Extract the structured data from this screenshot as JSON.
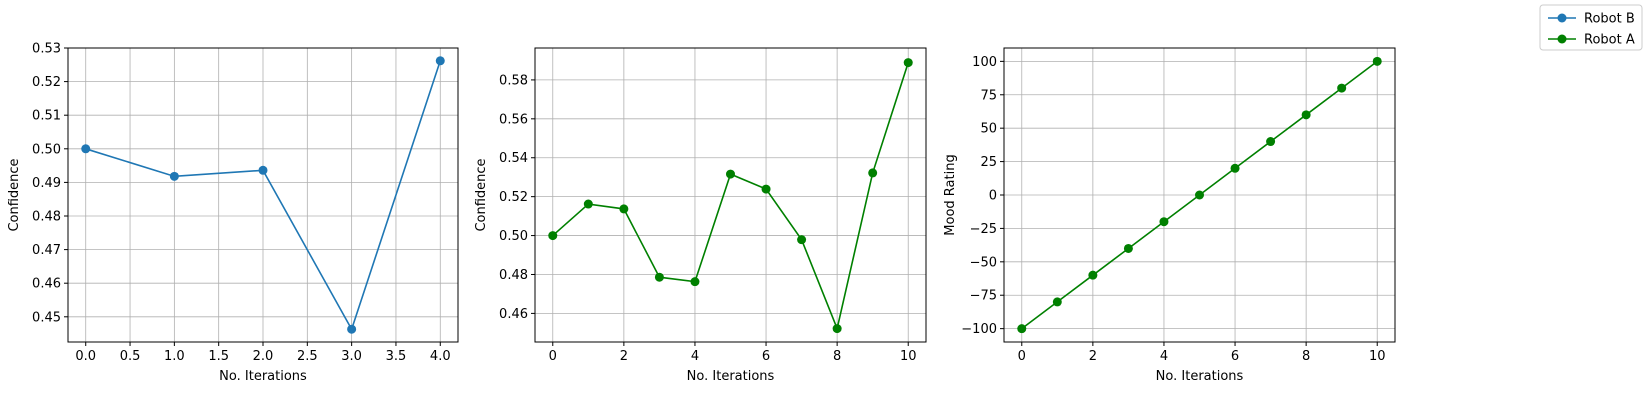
{
  "legend": {
    "placement": "top-right",
    "entries": [
      {
        "label": "Robot B",
        "color": "#1f77b4"
      },
      {
        "label": "Robot A",
        "color": "#008000"
      }
    ]
  },
  "chart_data": [
    {
      "type": "line",
      "xlabel": "No. Iterations",
      "ylabel": "Confidence",
      "color": "#1f77b4",
      "grid": true,
      "xlim": [
        -0.2,
        4.2
      ],
      "ylim": [
        0.4425,
        0.53
      ],
      "xticks": [
        0,
        0.5,
        1.0,
        1.5,
        2.0,
        2.5,
        3.0,
        3.5,
        4.0
      ],
      "xtick_labels": [
        "0.0",
        "0.5",
        "1.0",
        "1.5",
        "2.0",
        "2.5",
        "3.0",
        "3.5",
        "4.0"
      ],
      "yticks": [
        0.45,
        0.46,
        0.47,
        0.48,
        0.49,
        0.5,
        0.51,
        0.52,
        0.53
      ],
      "ytick_labels": [
        "0.45",
        "0.46",
        "0.47",
        "0.48",
        "0.49",
        "0.50",
        "0.51",
        "0.52",
        "0.53"
      ],
      "series": [
        {
          "x": [
            0,
            1,
            2,
            3,
            4
          ],
          "values": [
            0.5,
            0.4918,
            0.4936,
            0.4463,
            0.5262
          ]
        }
      ]
    },
    {
      "type": "line",
      "xlabel": "No. Iterations",
      "ylabel": "Confidence",
      "color": "#008000",
      "grid": true,
      "xlim": [
        -0.5,
        10.5
      ],
      "ylim": [
        0.4453,
        0.5964
      ],
      "xticks": [
        0,
        2,
        4,
        6,
        8,
        10
      ],
      "xtick_labels": [
        "0",
        "2",
        "4",
        "6",
        "8",
        "10"
      ],
      "yticks": [
        0.46,
        0.48,
        0.5,
        0.52,
        0.54,
        0.56,
        0.58
      ],
      "ytick_labels": [
        "0.46",
        "0.48",
        "0.50",
        "0.52",
        "0.54",
        "0.56",
        "0.58"
      ],
      "series": [
        {
          "x": [
            0,
            1,
            2,
            3,
            4,
            5,
            6,
            7,
            8,
            9,
            10
          ],
          "values": [
            0.5,
            0.5162,
            0.5137,
            0.4786,
            0.4763,
            0.5316,
            0.5239,
            0.4979,
            0.4522,
            0.5322,
            0.5889
          ]
        }
      ]
    },
    {
      "type": "line",
      "xlabel": "No. Iterations",
      "ylabel": "Mood Rating",
      "color": "#008000",
      "grid": true,
      "xlim": [
        -0.5,
        10.5
      ],
      "ylim": [
        -110,
        110
      ],
      "xticks": [
        0,
        2,
        4,
        6,
        8,
        10
      ],
      "xtick_labels": [
        "0",
        "2",
        "4",
        "6",
        "8",
        "10"
      ],
      "yticks": [
        -100,
        -75,
        -50,
        -25,
        0,
        25,
        50,
        75,
        100
      ],
      "ytick_labels": [
        "−100",
        "−75",
        "−50",
        "−25",
        "0",
        "25",
        "50",
        "75",
        "100"
      ],
      "series": [
        {
          "x": [
            0,
            1,
            2,
            3,
            4,
            5,
            6,
            7,
            8,
            9,
            10
          ],
          "values": [
            -100,
            -80,
            -60,
            -40,
            -20,
            0,
            20,
            40,
            60,
            80,
            100
          ]
        }
      ]
    }
  ]
}
